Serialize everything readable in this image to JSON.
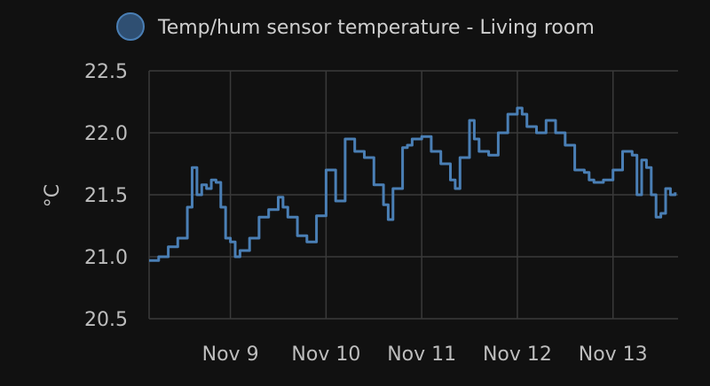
{
  "chart_data": {
    "type": "line",
    "legend_position": "top",
    "ylabel": "°C",
    "ylim": [
      20.5,
      22.5
    ],
    "y_ticks": [
      "22.5",
      "22.0",
      "21.5",
      "21.0",
      "20.5"
    ],
    "y_tick_values": [
      22.5,
      22.0,
      21.5,
      21.0,
      20.5
    ],
    "x_ticks": [
      "Nov 9",
      "Nov 10",
      "Nov 11",
      "Nov 12",
      "Nov 13"
    ],
    "x_tick_values": [
      9,
      10,
      11,
      12,
      13
    ],
    "xlim": [
      8.15,
      13.68
    ],
    "grid": true,
    "series": [
      {
        "name": "Temp/hum sensor temperature - Living room",
        "color": "#4a7fb5",
        "x": [
          8.15,
          8.25,
          8.35,
          8.45,
          8.55,
          8.6,
          8.65,
          8.7,
          8.75,
          8.8,
          8.85,
          8.9,
          8.95,
          9.0,
          9.05,
          9.1,
          9.2,
          9.3,
          9.4,
          9.5,
          9.55,
          9.6,
          9.7,
          9.8,
          9.9,
          10.0,
          10.1,
          10.2,
          10.3,
          10.4,
          10.5,
          10.6,
          10.65,
          10.7,
          10.8,
          10.85,
          10.9,
          11.0,
          11.1,
          11.2,
          11.3,
          11.35,
          11.4,
          11.5,
          11.55,
          11.6,
          11.7,
          11.8,
          11.9,
          12.0,
          12.05,
          12.1,
          12.2,
          12.3,
          12.4,
          12.5,
          12.6,
          12.7,
          12.75,
          12.8,
          12.9,
          13.0,
          13.1,
          13.2,
          13.25,
          13.3,
          13.35,
          13.4,
          13.45,
          13.5,
          13.55,
          13.6,
          13.65
        ],
        "y": [
          20.97,
          21.0,
          21.08,
          21.15,
          21.4,
          21.72,
          21.5,
          21.58,
          21.55,
          21.62,
          21.6,
          21.4,
          21.15,
          21.12,
          21.0,
          21.05,
          21.15,
          21.32,
          21.38,
          21.48,
          21.4,
          21.32,
          21.17,
          21.12,
          21.33,
          21.7,
          21.45,
          21.95,
          21.85,
          21.8,
          21.58,
          21.42,
          21.3,
          21.55,
          21.88,
          21.9,
          21.95,
          21.97,
          21.85,
          21.75,
          21.62,
          21.55,
          21.8,
          22.1,
          21.95,
          21.85,
          21.82,
          22.0,
          22.15,
          22.2,
          22.15,
          22.05,
          22.0,
          22.1,
          22.0,
          21.9,
          21.7,
          21.68,
          21.62,
          21.6,
          21.62,
          21.7,
          21.85,
          21.82,
          21.5,
          21.78,
          21.72,
          21.5,
          21.32,
          21.35,
          21.55,
          21.5,
          21.52
        ]
      }
    ]
  }
}
